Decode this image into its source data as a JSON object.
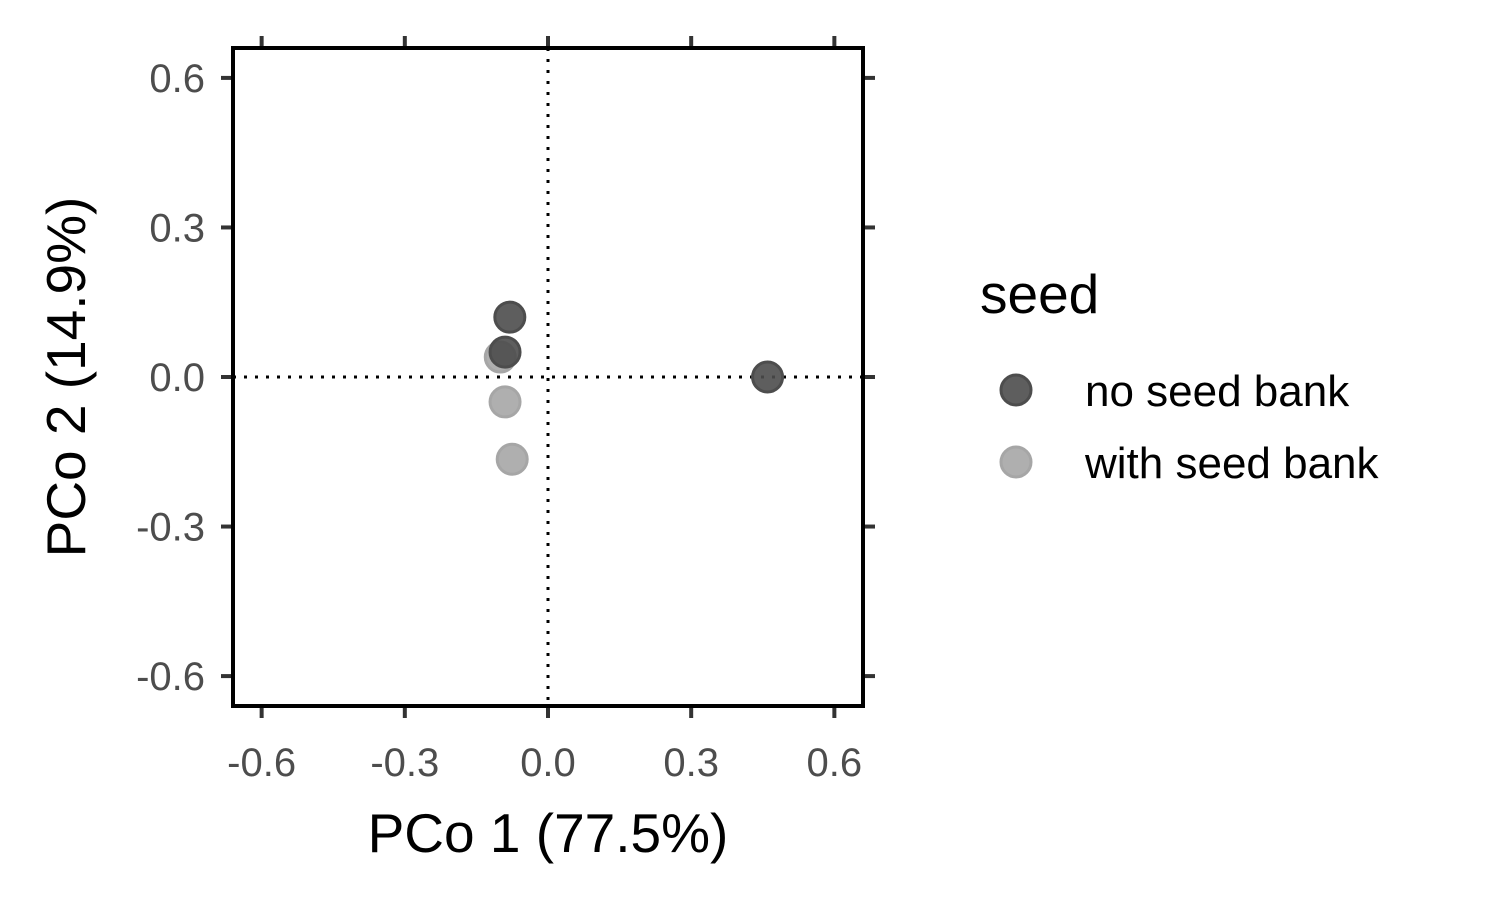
{
  "chart_data": {
    "type": "scatter",
    "xlabel": "PCo 1 (77.5%)",
    "ylabel": "PCo 2 (14.9%)",
    "xlim": [
      -0.66,
      0.66
    ],
    "ylim": [
      -0.66,
      0.66
    ],
    "xticks": [
      -0.6,
      -0.3,
      0.0,
      0.3,
      0.6
    ],
    "yticks": [
      -0.6,
      -0.3,
      0.0,
      0.3,
      0.6
    ],
    "xtick_labels": [
      "-0.6",
      "-0.3",
      "0.0",
      "0.3",
      "0.6"
    ],
    "ytick_labels": [
      "-0.6",
      "-0.3",
      "0.0",
      "0.3",
      "0.6"
    ],
    "reference_lines": {
      "x": 0.0,
      "y": 0.0,
      "style": "dotted"
    },
    "legend": {
      "title": "seed",
      "placement": "right"
    },
    "series": [
      {
        "name": "no seed bank",
        "color": "#4d4d4d",
        "points": [
          {
            "x": -0.08,
            "y": 0.12
          },
          {
            "x": -0.09,
            "y": 0.05
          },
          {
            "x": 0.46,
            "y": 0.0
          }
        ]
      },
      {
        "name": "with seed bank",
        "color": "#a6a6a6",
        "points": [
          {
            "x": -0.1,
            "y": 0.04
          },
          {
            "x": -0.09,
            "y": -0.05
          },
          {
            "x": -0.075,
            "y": -0.165
          }
        ]
      }
    ]
  }
}
